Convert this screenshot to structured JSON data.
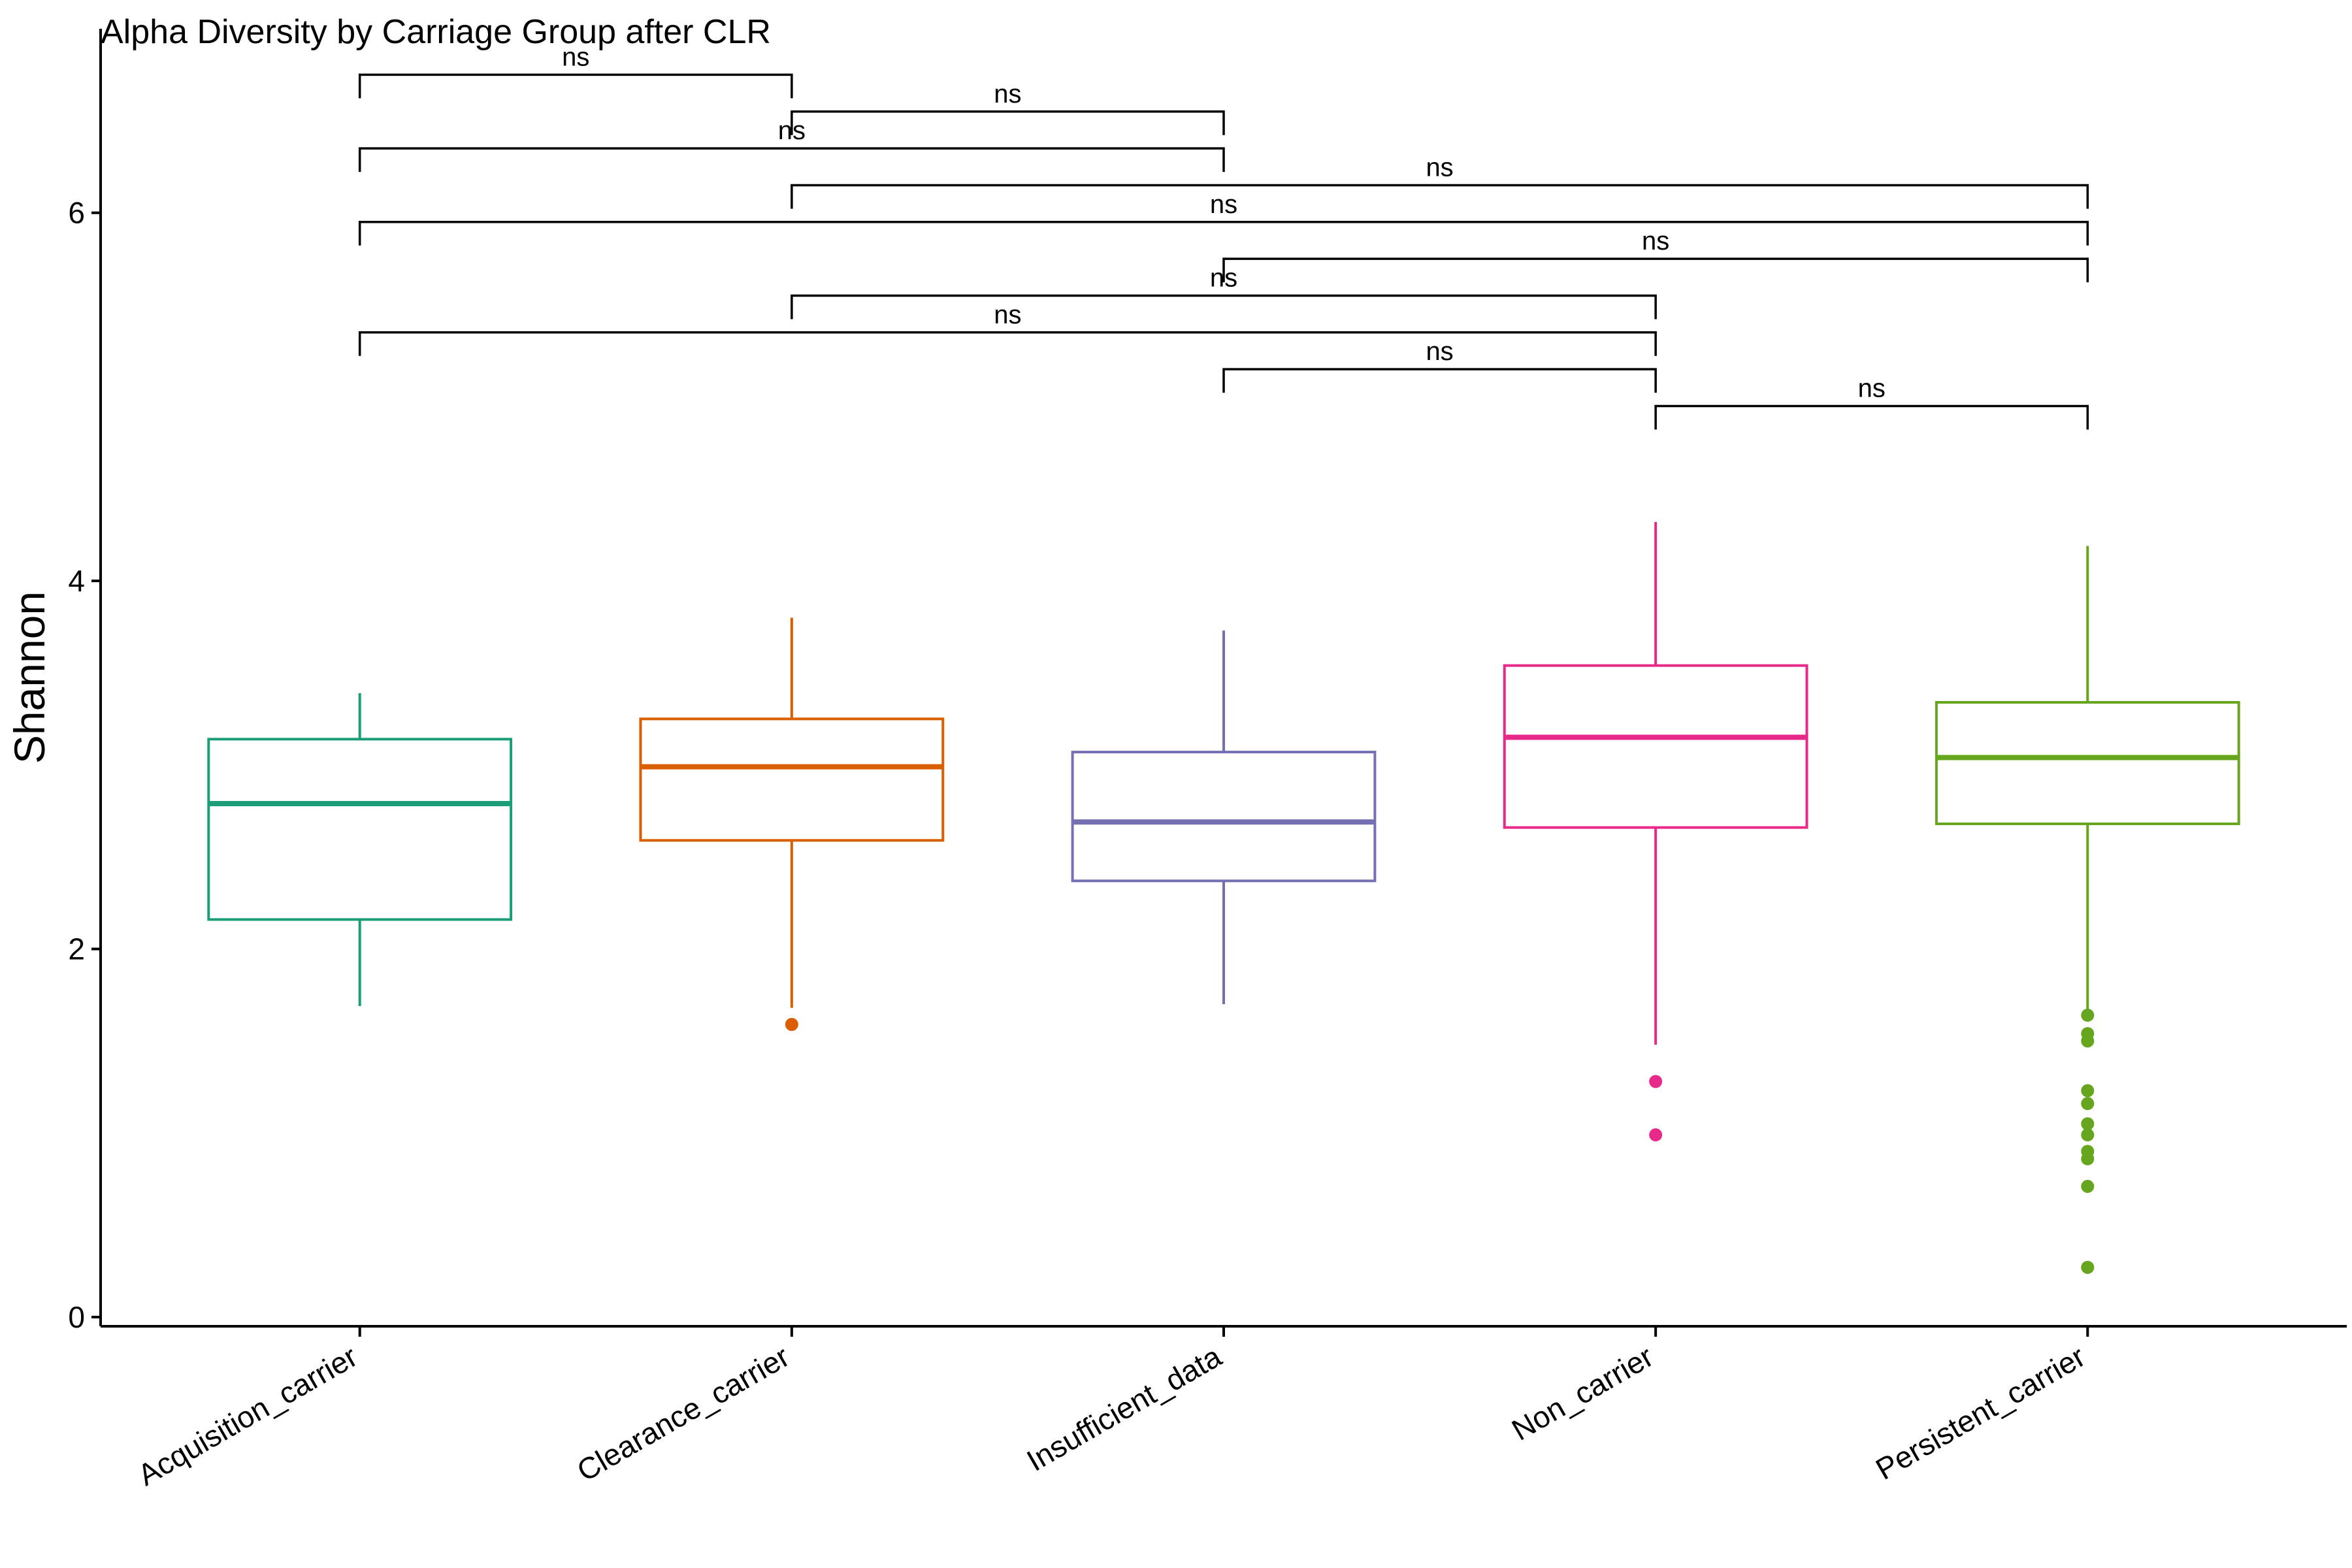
{
  "chart_data": {
    "type": "boxplot",
    "title": "Alpha Diversity by Carriage Group after CLR",
    "xlabel": "",
    "ylabel": "Shannon",
    "ylim": [
      -0.05,
      7.0
    ],
    "yticks": [
      0,
      2,
      4,
      6
    ],
    "ytick_labels": [
      "0",
      "2",
      "4",
      "6"
    ],
    "grid": false,
    "legend": "none",
    "categories": [
      "Acquisition_carrier",
      "Clearance_carrier",
      "Insufficient_data",
      "Non_carrier",
      "Persistent_carrier"
    ],
    "groups": [
      {
        "name": "Acquisition_carrier",
        "color": "#1b9e77",
        "whisker_low": 1.69,
        "q1": 2.16,
        "median": 2.79,
        "q3": 3.14,
        "whisker_high": 3.39,
        "outliers": []
      },
      {
        "name": "Clearance_carrier",
        "color": "#d95f02",
        "whisker_low": 1.68,
        "q1": 2.59,
        "median": 2.99,
        "q3": 3.25,
        "whisker_high": 3.8,
        "outliers": [
          1.59
        ]
      },
      {
        "name": "Insufficient_data",
        "color": "#7570b3",
        "whisker_low": 1.7,
        "q1": 2.37,
        "median": 2.69,
        "q3": 3.07,
        "whisker_high": 3.73,
        "outliers": []
      },
      {
        "name": "Non_carrier",
        "color": "#e7298a",
        "whisker_low": 1.48,
        "q1": 2.66,
        "median": 3.15,
        "q3": 3.54,
        "whisker_high": 4.32,
        "outliers": [
          1.28,
          0.99
        ]
      },
      {
        "name": "Persistent_carrier",
        "color": "#66a61e",
        "whisker_low": 1.67,
        "q1": 2.68,
        "median": 3.04,
        "q3": 3.34,
        "whisker_high": 4.19,
        "outliers": [
          1.64,
          1.54,
          1.5,
          1.23,
          1.16,
          1.05,
          0.99,
          0.9,
          0.86,
          0.71,
          0.27
        ]
      }
    ],
    "comparisons": [
      {
        "group1": "Acquisition_carrier",
        "group2": "Clearance_carrier",
        "y": 6.75,
        "label": "ns"
      },
      {
        "group1": "Clearance_carrier",
        "group2": "Insufficient_data",
        "y": 6.55,
        "label": "ns"
      },
      {
        "group1": "Acquisition_carrier",
        "group2": "Insufficient_data",
        "y": 6.35,
        "label": "ns"
      },
      {
        "group1": "Clearance_carrier",
        "group2": "Persistent_carrier",
        "y": 6.15,
        "label": "ns"
      },
      {
        "group1": "Acquisition_carrier",
        "group2": "Persistent_carrier",
        "y": 5.95,
        "label": "ns"
      },
      {
        "group1": "Insufficient_data",
        "group2": "Persistent_carrier",
        "y": 5.75,
        "label": "ns"
      },
      {
        "group1": "Clearance_carrier",
        "group2": "Non_carrier",
        "y": 5.55,
        "label": "ns"
      },
      {
        "group1": "Acquisition_carrier",
        "group2": "Non_carrier",
        "y": 5.35,
        "label": "ns"
      },
      {
        "group1": "Insufficient_data",
        "group2": "Non_carrier",
        "y": 5.15,
        "label": "ns"
      },
      {
        "group1": "Non_carrier",
        "group2": "Persistent_carrier",
        "y": 4.95,
        "label": "ns"
      }
    ]
  }
}
